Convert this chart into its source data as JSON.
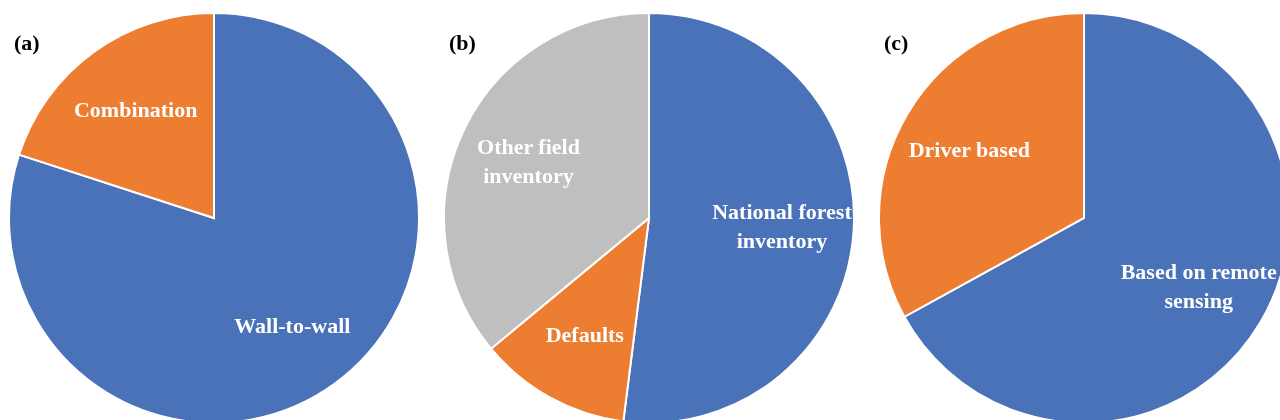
{
  "chart_data": [
    {
      "type": "pie",
      "title": "(a)",
      "categories": [
        "Wall-to-wall",
        "Combination"
      ],
      "values": [
        80,
        20
      ],
      "colors": [
        "#4a72b8",
        "#ed7d31"
      ]
    },
    {
      "type": "pie",
      "title": "(b)",
      "categories": [
        "National forest inventory",
        "Defaults",
        "Other field inventory"
      ],
      "values": [
        52,
        12,
        36
      ],
      "colors": [
        "#4a72b8",
        "#ed7d31",
        "#bfbfbf"
      ]
    },
    {
      "type": "pie",
      "title": "(c)",
      "categories": [
        "Based on remote sensing",
        "Driver based"
      ],
      "values": [
        67,
        33
      ],
      "colors": [
        "#4a72b8",
        "#ed7d31"
      ]
    }
  ]
}
